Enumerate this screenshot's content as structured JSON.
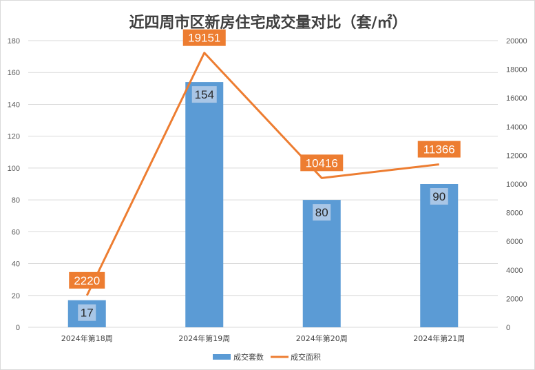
{
  "chart_data": {
    "type": "bar",
    "title": "近四周市区新房住宅成交量对比（套/㎡）",
    "categories": [
      "2024年第18周",
      "2024年第19周",
      "2024年第20周",
      "2024年第21周"
    ],
    "series": [
      {
        "name": "成交套数",
        "type": "bar",
        "axis": "left",
        "values": [
          17,
          154,
          80,
          90
        ],
        "color": "#5b9bd5"
      },
      {
        "name": "成交面积",
        "type": "line",
        "axis": "right",
        "values": [
          2220,
          19151,
          10416,
          11366
        ],
        "color": "#ed7d31"
      }
    ],
    "y_left": {
      "min": 0,
      "max": 180,
      "step": 20
    },
    "y_right": {
      "min": 0,
      "max": 20000,
      "step": 2000
    },
    "grid": true,
    "legend_position": "bottom"
  }
}
